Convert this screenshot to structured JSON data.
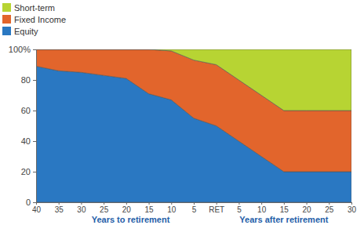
{
  "chart_data": {
    "type": "area",
    "stacked": true,
    "categories": [
      "40",
      "35",
      "30",
      "25",
      "20",
      "15",
      "10",
      "5",
      "RET",
      "5",
      "10",
      "15",
      "20",
      "25",
      "30"
    ],
    "series": [
      {
        "name": "Equity",
        "color": "#2a78c2",
        "values": [
          89,
          86,
          85,
          83,
          81,
          71,
          67,
          55,
          50,
          40,
          30,
          20,
          20,
          20,
          20
        ]
      },
      {
        "name": "Fixed Income",
        "color": "#e2652c",
        "values": [
          11,
          14,
          15,
          17,
          19,
          29,
          32,
          38,
          40,
          40,
          40,
          40,
          40,
          40,
          40
        ]
      },
      {
        "name": "Short-term",
        "color": "#b7d433",
        "values": [
          0,
          0,
          0,
          0,
          0,
          0,
          1,
          7,
          10,
          20,
          30,
          40,
          40,
          40,
          40
        ]
      }
    ],
    "x_labels": [
      "Years to retirement",
      "Years after retirement"
    ],
    "ylim": [
      0,
      100
    ],
    "yticks": [
      0,
      20,
      40,
      60,
      80,
      {
        "value": 100,
        "label": "100%"
      }
    ],
    "grid": false,
    "legend": "top-left"
  }
}
